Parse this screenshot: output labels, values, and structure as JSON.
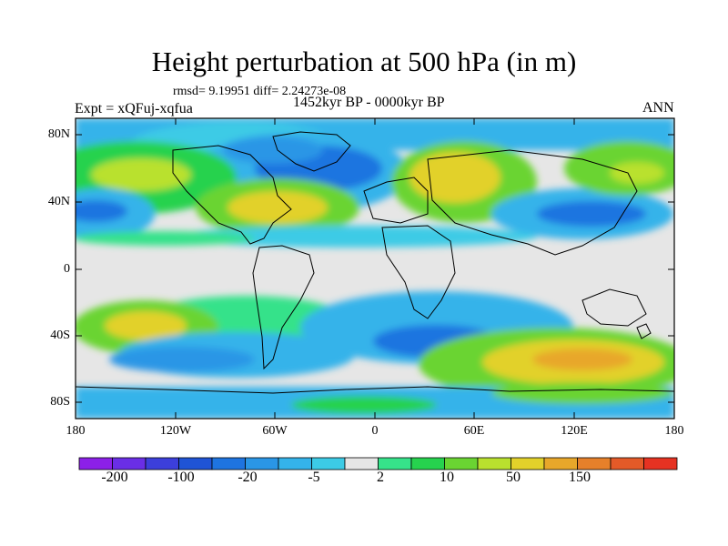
{
  "title": "Height perturbation at 500 hPa (in m)",
  "stats_line": "rmsd= 9.19951  diff= 2.24273e-08",
  "experiment": "Expt = xQFuj-xqfua",
  "period": "1452kyr BP - 0000kyr BP",
  "season": "ANN",
  "y_ticks": [
    "80N",
    "40N",
    "0",
    "40S",
    "80S"
  ],
  "x_ticks": [
    "180",
    "120W",
    "60W",
    "0",
    "60E",
    "120E",
    "180"
  ],
  "colorbar": {
    "labels": [
      "-200",
      "-100",
      "-20",
      "-5",
      "2",
      "10",
      "50",
      "150"
    ],
    "colors": [
      "#8c20e8",
      "#6a2ee6",
      "#3c3fdb",
      "#1f54d6",
      "#1e74e0",
      "#2a96e6",
      "#34b3ea",
      "#3ccbe6",
      "#e6e6e6",
      "#36e28a",
      "#26d24e",
      "#6ad432",
      "#b9e12e",
      "#e2d12a",
      "#e8a72a",
      "#e6802a",
      "#e45a28",
      "#e63222"
    ]
  },
  "colors": {
    "background": "#e6e6e6",
    "frame": "#000000"
  }
}
